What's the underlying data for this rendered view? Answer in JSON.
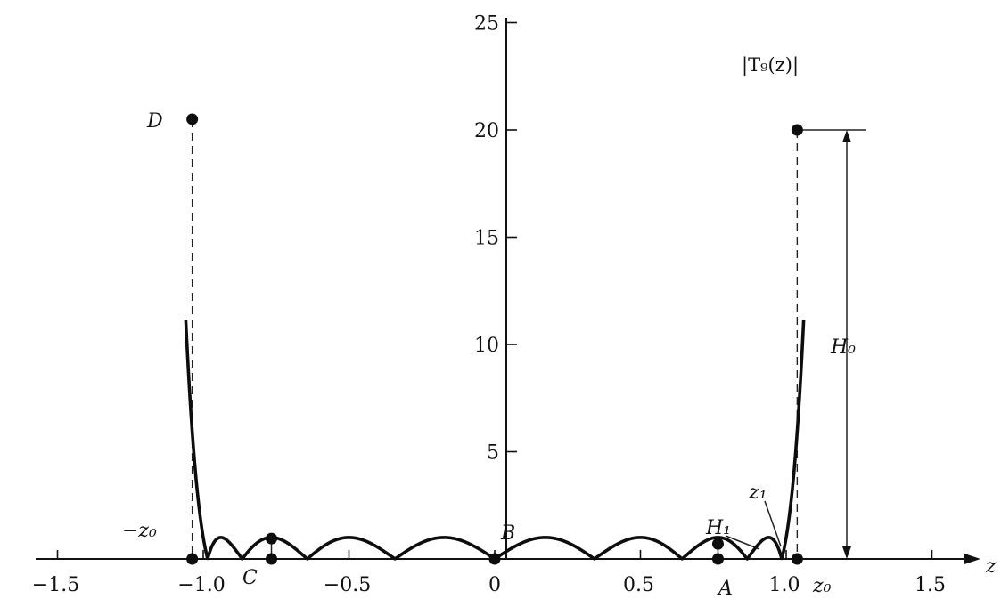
{
  "chart_data": {
    "type": "line",
    "title": "",
    "xlabel": "z",
    "ylabel": "",
    "function_label": "|T₉(z)|",
    "xlim": [
      -1.5,
      1.6
    ],
    "ylim": [
      0,
      25
    ],
    "x_ticks": [
      -1.5,
      -1.0,
      -0.5,
      0,
      0.5,
      1.0,
      1.5
    ],
    "x_tick_labels": [
      "−1.5",
      "−1.0",
      "−0.5",
      "0",
      "0.5",
      "1.0",
      "1.5"
    ],
    "y_ticks": [
      5,
      10,
      15,
      20,
      25
    ],
    "y_tick_labels": [
      "5",
      "10",
      "15",
      "20",
      "25"
    ],
    "z0": 1.0378,
    "series": [
      {
        "name": "",
        "description_formula": "|T9(z)| = |256z^9 - 576z^7 + 432z^5 - 120z^3 + 9z|",
        "x_range": [
          -1.06,
          1.06
        ]
      }
    ],
    "points": [
      {
        "label": "A",
        "x": 0.766,
        "y": 0
      },
      {
        "label": "",
        "x": 0.766,
        "y": 0.7
      },
      {
        "label": "B",
        "x": 0,
        "y": 0
      },
      {
        "label": "C",
        "x": -0.766,
        "y": 0
      },
      {
        "label": "",
        "x": -0.766,
        "y": 0.95
      },
      {
        "label": "D",
        "x": -1.0378,
        "y": 20.5
      },
      {
        "label": "",
        "x": -1.0378,
        "y": 0
      },
      {
        "label": "",
        "x": 1.0378,
        "y": 20.0
      },
      {
        "label": "",
        "x": 1.0378,
        "y": 0
      }
    ],
    "annotations": {
      "neg_z0": "−z₀",
      "z0": "z₀",
      "z1": "z₁",
      "H0": "H₀",
      "H1": "H₁",
      "A": "A",
      "B": "B",
      "C": "C",
      "D": "D"
    }
  }
}
